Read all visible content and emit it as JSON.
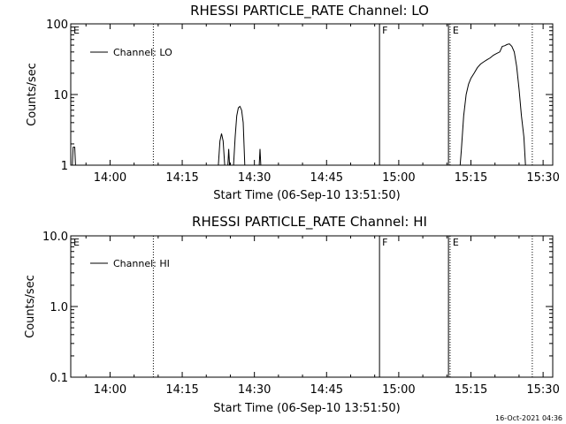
{
  "timestamp": "16-Oct-2021 04:36",
  "chart_data": [
    {
      "type": "line",
      "title": "RHESSI PARTICLE_RATE Channel: LO",
      "xlabel": "Start Time (06-Sep-10 13:51:50)",
      "ylabel": "Counts/sec",
      "y_scale": "log",
      "ylim": [
        1,
        100
      ],
      "y_ticks": [
        1,
        10,
        100
      ],
      "y_tick_labels": [
        "1",
        "10",
        "100"
      ],
      "xlim": [
        "13:51:50",
        "15:32:00"
      ],
      "x_ticks": [
        "14:00",
        "14:15",
        "14:30",
        "14:45",
        "15:00",
        "15:15",
        "15:30"
      ],
      "legend": {
        "position": "top-left",
        "entries": [
          "Channel: LO"
        ]
      },
      "markers": [
        {
          "label": "E",
          "time": "13:51:50",
          "style": "dotted"
        },
        {
          "label": "",
          "time": "14:09:00",
          "style": "dotted"
        },
        {
          "label": "F",
          "time": "14:56:00",
          "style": "solid"
        },
        {
          "label": "",
          "time": "15:10:20",
          "style": "solid"
        },
        {
          "label": "E",
          "time": "15:10:40",
          "style": "dotted"
        },
        {
          "label": "",
          "time": "15:27:45",
          "style": "dotted"
        }
      ],
      "series": [
        {
          "name": "Channel: LO",
          "segments": [
            [
              [
                "13:52:10",
                1.0
              ],
              [
                "13:52:20",
                1.8
              ],
              [
                "13:52:40",
                1.8
              ],
              [
                "13:52:50",
                1.0
              ]
            ],
            [
              [
                "14:22:30",
                1.0
              ],
              [
                "14:22:50",
                2.2
              ],
              [
                "14:23:10",
                2.8
              ],
              [
                "14:23:30",
                2.2
              ],
              [
                "14:23:50",
                1.0
              ]
            ],
            [
              [
                "14:24:30",
                1.0
              ],
              [
                "14:24:40",
                1.7
              ],
              [
                "14:24:50",
                1.0
              ]
            ],
            [
              [
                "14:25:40",
                1.0
              ],
              [
                "14:26:00",
                2.5
              ],
              [
                "14:26:20",
                5.0
              ],
              [
                "14:26:40",
                6.5
              ],
              [
                "14:27:00",
                6.8
              ],
              [
                "14:27:20",
                6.0
              ],
              [
                "14:27:40",
                4.0
              ],
              [
                "14:28:00",
                1.0
              ]
            ],
            [
              [
                "14:31:00",
                1.0
              ],
              [
                "14:31:10",
                1.7
              ],
              [
                "14:31:20",
                1.0
              ]
            ],
            [
              [
                "15:12:45",
                1.0
              ],
              [
                "15:13:00",
                1.6
              ],
              [
                "15:13:30",
                5.0
              ],
              [
                "15:14:00",
                10.0
              ],
              [
                "15:14:30",
                14.0
              ],
              [
                "15:15:00",
                17.0
              ],
              [
                "15:15:40",
                20.0
              ],
              [
                "15:16:20",
                24.0
              ],
              [
                "15:17:00",
                27.0
              ],
              [
                "15:17:40",
                29.0
              ],
              [
                "15:18:20",
                31.0
              ],
              [
                "15:19:00",
                33.0
              ],
              [
                "15:19:40",
                36.0
              ],
              [
                "15:20:20",
                38.0
              ],
              [
                "15:21:00",
                40.0
              ],
              [
                "15:21:30",
                48.0
              ],
              [
                "15:22:00",
                49.0
              ],
              [
                "15:22:30",
                51.0
              ],
              [
                "15:23:00",
                52.0
              ],
              [
                "15:23:30",
                48.0
              ],
              [
                "15:24:00",
                40.0
              ],
              [
                "15:24:30",
                25.0
              ],
              [
                "15:25:00",
                12.0
              ],
              [
                "15:25:30",
                5.0
              ],
              [
                "15:26:00",
                2.5
              ],
              [
                "15:26:20",
                1.0
              ]
            ]
          ]
        }
      ]
    },
    {
      "type": "line",
      "title": "RHESSI PARTICLE_RATE Channel: HI",
      "xlabel": "Start Time (06-Sep-10 13:51:50)",
      "ylabel": "Counts/sec",
      "y_scale": "log",
      "ylim": [
        0.1,
        10
      ],
      "y_ticks": [
        0.1,
        1,
        10
      ],
      "y_tick_labels": [
        "0.1",
        "1.0",
        "10.0"
      ],
      "xlim": [
        "13:51:50",
        "15:32:00"
      ],
      "x_ticks": [
        "14:00",
        "14:15",
        "14:30",
        "14:45",
        "15:00",
        "15:15",
        "15:30"
      ],
      "legend": {
        "position": "top-left",
        "entries": [
          "Channel: HI"
        ]
      },
      "markers": [
        {
          "label": "E",
          "time": "13:51:50",
          "style": "dotted"
        },
        {
          "label": "",
          "time": "14:09:00",
          "style": "dotted"
        },
        {
          "label": "F",
          "time": "14:56:00",
          "style": "solid"
        },
        {
          "label": "",
          "time": "15:10:20",
          "style": "solid"
        },
        {
          "label": "E",
          "time": "15:10:40",
          "style": "dotted"
        },
        {
          "label": "",
          "time": "15:27:45",
          "style": "dotted"
        }
      ],
      "series": [
        {
          "name": "Channel: HI",
          "segments": []
        }
      ]
    }
  ]
}
